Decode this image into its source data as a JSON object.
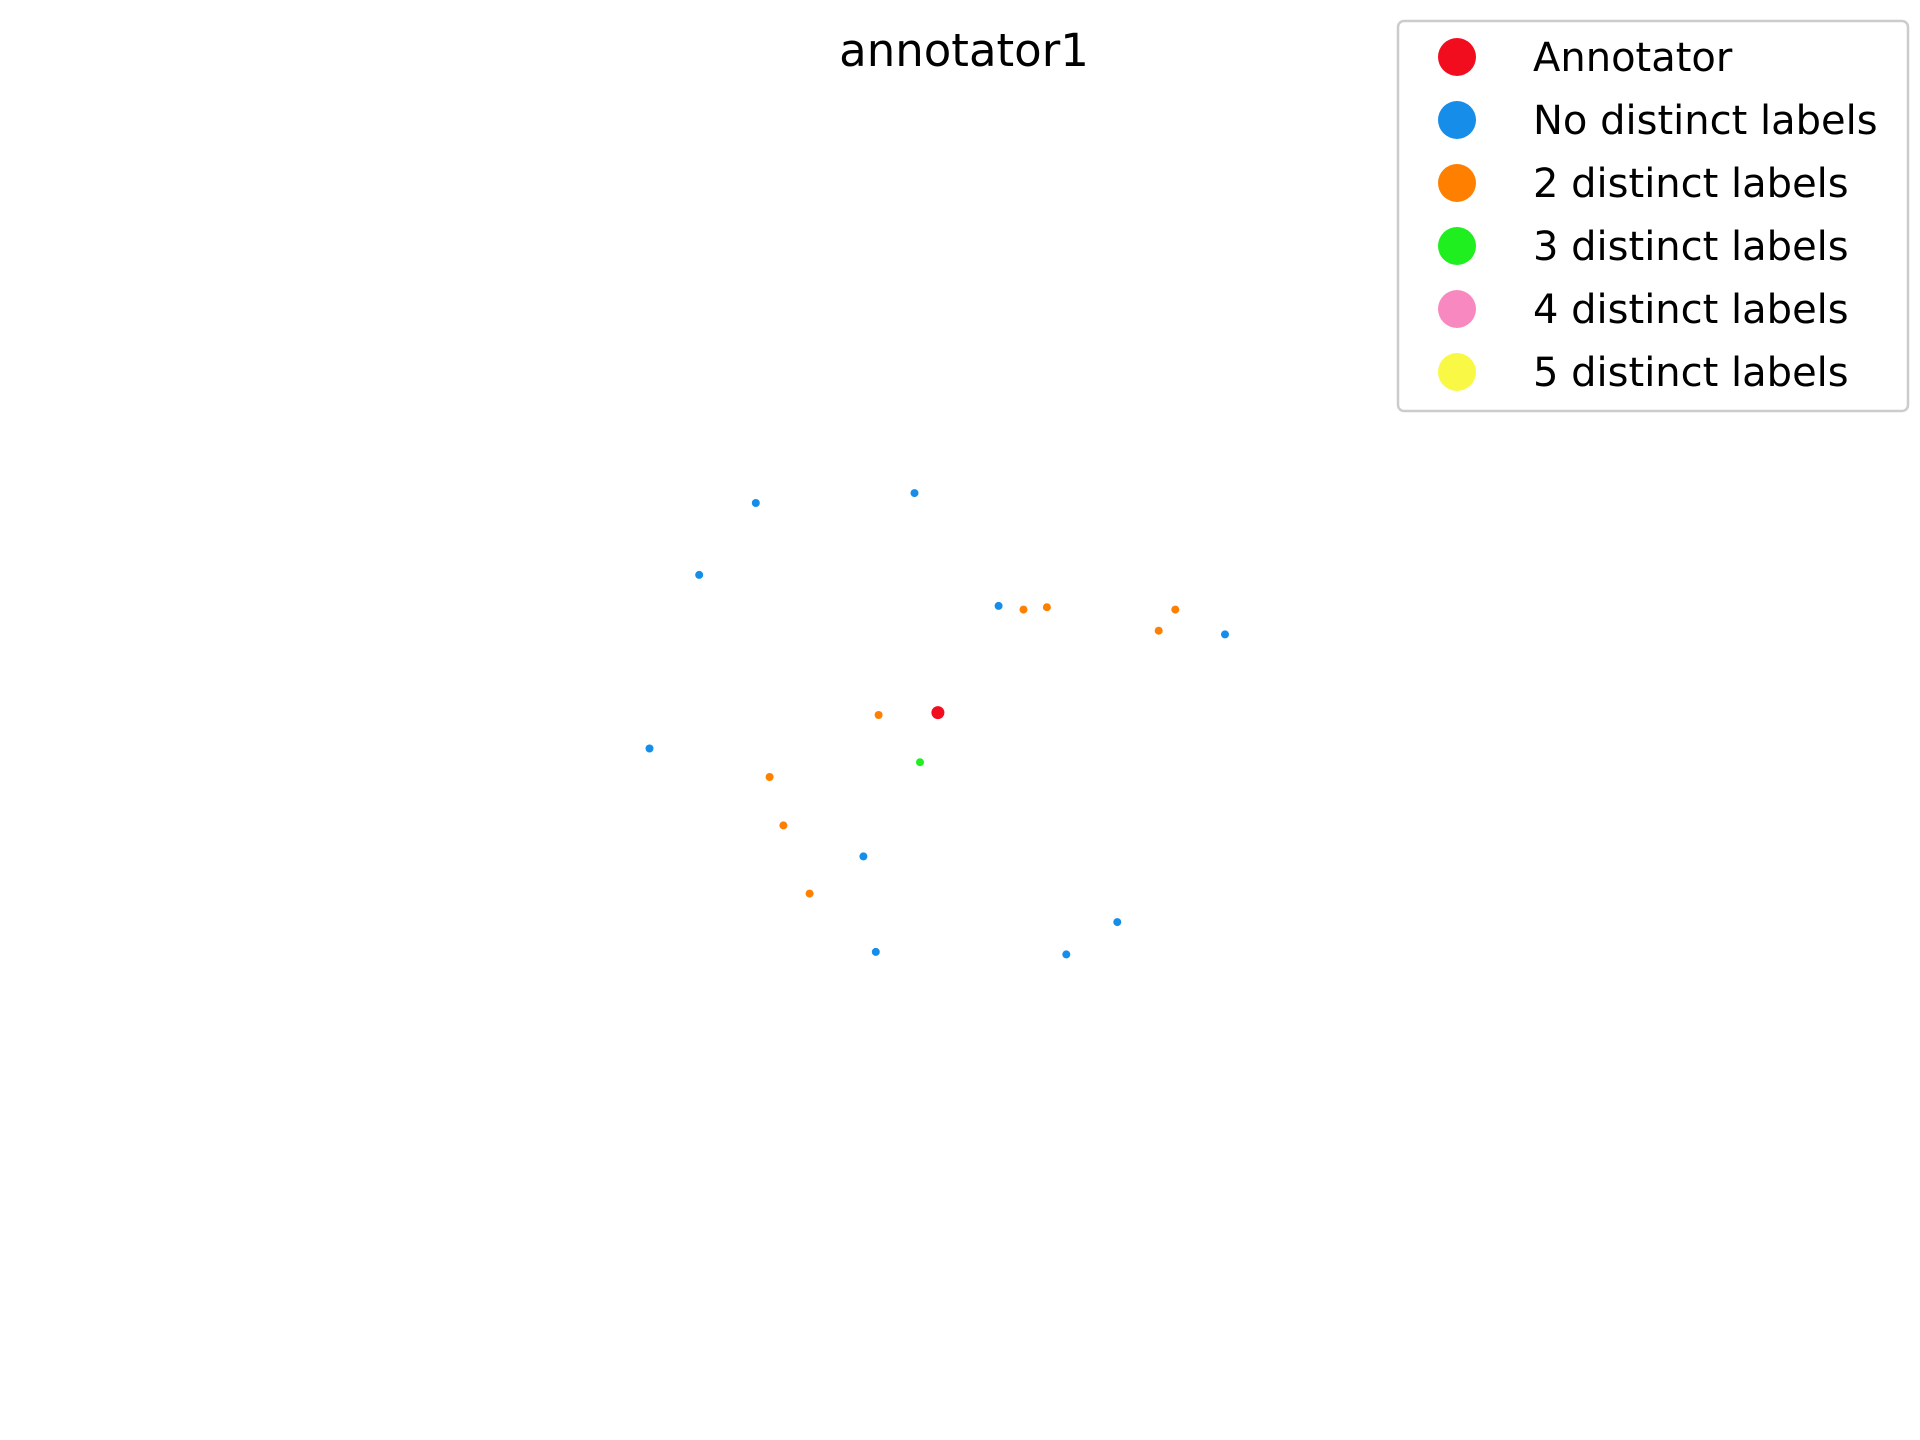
{
  "chart_data": {
    "type": "scatter",
    "title": "annotator1",
    "xlabel": "",
    "ylabel": "",
    "axes_visible": false,
    "grid": false,
    "legend_position": "top-right",
    "xlim": [
      0,
      100
    ],
    "ylim": [
      0,
      100
    ],
    "series": [
      {
        "name": "Annotator",
        "color": "#f20d1e",
        "points": [
          [
            48.4,
            50.6
          ]
        ]
      },
      {
        "name": "No distinct labels",
        "color": "#168de9",
        "points": [
          [
            35.2,
            67.5
          ],
          [
            46.7,
            68.3
          ],
          [
            31.1,
            61.7
          ],
          [
            52.8,
            59.2
          ],
          [
            69.2,
            56.9
          ],
          [
            27.5,
            47.7
          ],
          [
            43.0,
            39.0
          ],
          [
            43.9,
            31.3
          ],
          [
            61.4,
            33.7
          ],
          [
            57.7,
            31.1
          ]
        ]
      },
      {
        "name": "2 distinct labels",
        "color": "#ff7f00",
        "points": [
          [
            54.6,
            58.9
          ],
          [
            56.3,
            59.1
          ],
          [
            64.4,
            57.2
          ],
          [
            65.6,
            58.9
          ],
          [
            44.1,
            50.4
          ],
          [
            36.2,
            45.4
          ],
          [
            37.2,
            41.5
          ],
          [
            39.1,
            36.0
          ]
        ]
      },
      {
        "name": "3 distinct labels",
        "color": "#1fee1f",
        "points": [
          [
            47.1,
            46.6
          ]
        ]
      },
      {
        "name": "4 distinct labels",
        "color": "#f889c0",
        "points": []
      },
      {
        "name": "5 distinct labels",
        "color": "#f9f945",
        "points": []
      }
    ]
  }
}
